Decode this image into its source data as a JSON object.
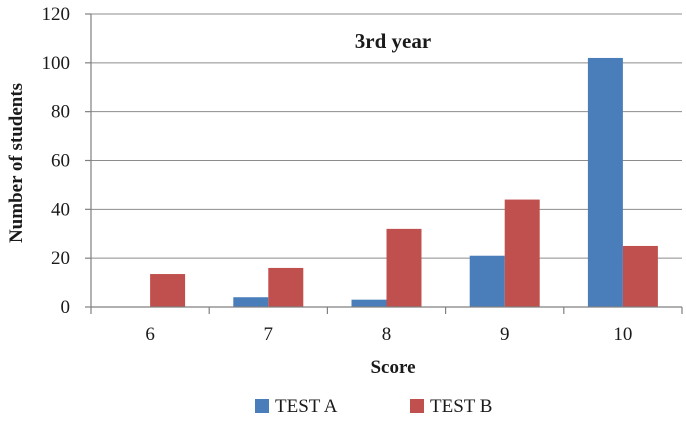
{
  "chart_data": {
    "type": "bar",
    "title": "3rd year",
    "xlabel": "Score",
    "ylabel": "Number of students",
    "categories": [
      "6",
      "7",
      "8",
      "9",
      "10"
    ],
    "series": [
      {
        "name": "TEST A",
        "color": "#4a7ebb",
        "values": [
          0,
          4,
          3,
          21,
          102
        ]
      },
      {
        "name": "TEST B",
        "color": "#c0504d",
        "values": [
          13.5,
          16,
          32,
          44,
          25
        ]
      }
    ],
    "ylim": [
      0,
      120
    ],
    "yticks": [
      0,
      20,
      40,
      60,
      80,
      100,
      120
    ],
    "grid": true,
    "legend": "bottom"
  }
}
